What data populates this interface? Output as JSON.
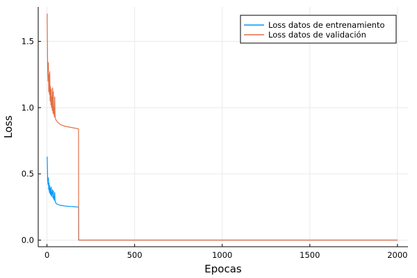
{
  "chart_data": {
    "type": "line",
    "title": "",
    "xlabel": "Epocas",
    "ylabel": "Loss",
    "xlim": [
      -50,
      2060
    ],
    "ylim": [
      -0.05,
      1.76
    ],
    "xticks": [
      0,
      500,
      1000,
      1500,
      2000
    ],
    "xtick_labels": [
      "0",
      "500",
      "1000",
      "1500",
      "2000"
    ],
    "yticks": [
      0.0,
      0.5,
      1.0,
      1.5
    ],
    "ytick_labels": [
      "0.0",
      "0.5",
      "1.0",
      "1.5"
    ],
    "grid": true,
    "legend_position": "top-right",
    "series": [
      {
        "name": "Loss datos de entrenamiento",
        "color": "#009AFA",
        "x": [
          1,
          2,
          4,
          6,
          8,
          10,
          12,
          14,
          16,
          18,
          20,
          22,
          24,
          26,
          28,
          30,
          32,
          34,
          36,
          38,
          40,
          42,
          44,
          46,
          48,
          50,
          55,
          60,
          70,
          80,
          90,
          100,
          120,
          140,
          160,
          180,
          181,
          185,
          200,
          300,
          500,
          1000,
          1500,
          2000
        ],
        "y": [
          0.63,
          0.58,
          0.46,
          0.42,
          0.47,
          0.38,
          0.43,
          0.36,
          0.41,
          0.35,
          0.39,
          0.34,
          0.4,
          0.33,
          0.36,
          0.35,
          0.38,
          0.32,
          0.37,
          0.31,
          0.33,
          0.3,
          0.36,
          0.3,
          0.29,
          0.28,
          0.275,
          0.27,
          0.265,
          0.262,
          0.26,
          0.258,
          0.255,
          0.253,
          0.251,
          0.25,
          0.0,
          0.0,
          0.0,
          0.0,
          0.0,
          0.0,
          0.0,
          0.0
        ]
      },
      {
        "name": "Loss datos de validación",
        "color": "#E26F46",
        "x": [
          1,
          2,
          4,
          6,
          8,
          10,
          12,
          14,
          16,
          18,
          20,
          22,
          24,
          26,
          28,
          30,
          32,
          34,
          36,
          38,
          40,
          42,
          44,
          46,
          48,
          50,
          55,
          60,
          70,
          80,
          90,
          100,
          120,
          140,
          160,
          180,
          181,
          185,
          200,
          300,
          500,
          1000,
          1500,
          2000
        ],
        "y": [
          1.71,
          1.55,
          1.3,
          1.2,
          1.34,
          1.12,
          1.25,
          1.1,
          1.27,
          1.05,
          1.16,
          1.02,
          1.14,
          1.0,
          1.08,
          0.98,
          1.15,
          0.96,
          1.12,
          0.95,
          1.0,
          0.93,
          1.08,
          0.94,
          0.92,
          0.91,
          0.9,
          0.89,
          0.88,
          0.87,
          0.865,
          0.86,
          0.855,
          0.85,
          0.845,
          0.84,
          0.0,
          0.0,
          0.0,
          0.0,
          0.0,
          0.0,
          0.0,
          0.0
        ]
      }
    ]
  }
}
